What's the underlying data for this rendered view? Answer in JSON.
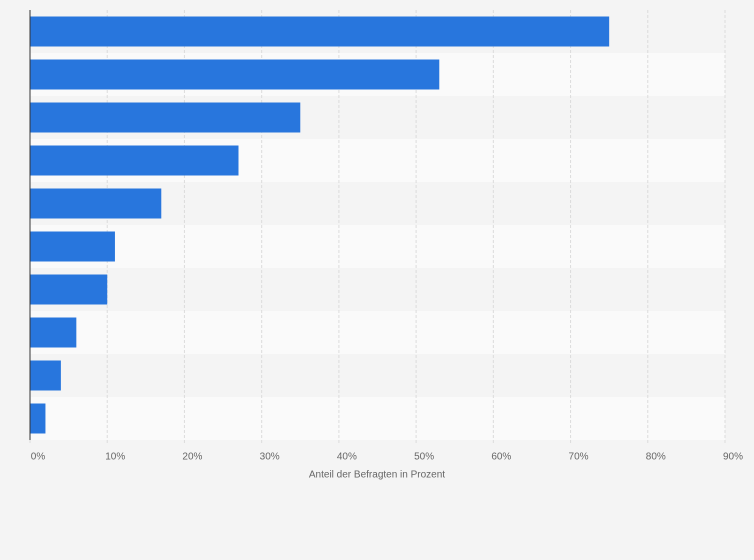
{
  "chart_data": {
    "type": "hbar",
    "x_label": "Anteil der Befragten in Prozent",
    "categories": [
      null,
      null,
      null,
      null,
      null,
      null,
      null,
      null,
      null,
      null
    ],
    "values": [
      75,
      53,
      35,
      27,
      17,
      11,
      10,
      6,
      4,
      2
    ],
    "color": "#2876dd",
    "xlim": [
      0,
      90
    ],
    "xticks": [
      {
        "value": 0,
        "label": "0%"
      },
      {
        "value": 10,
        "label": "10%"
      },
      {
        "value": 20,
        "label": "20%"
      },
      {
        "value": 30,
        "label": "30%"
      },
      {
        "value": 40,
        "label": "40%"
      },
      {
        "value": 50,
        "label": "50%"
      },
      {
        "value": 60,
        "label": "60%"
      },
      {
        "value": 70,
        "label": "70%"
      },
      {
        "value": 80,
        "label": "80%"
      },
      {
        "value": 90,
        "label": "90%"
      }
    ],
    "grid": true
  }
}
